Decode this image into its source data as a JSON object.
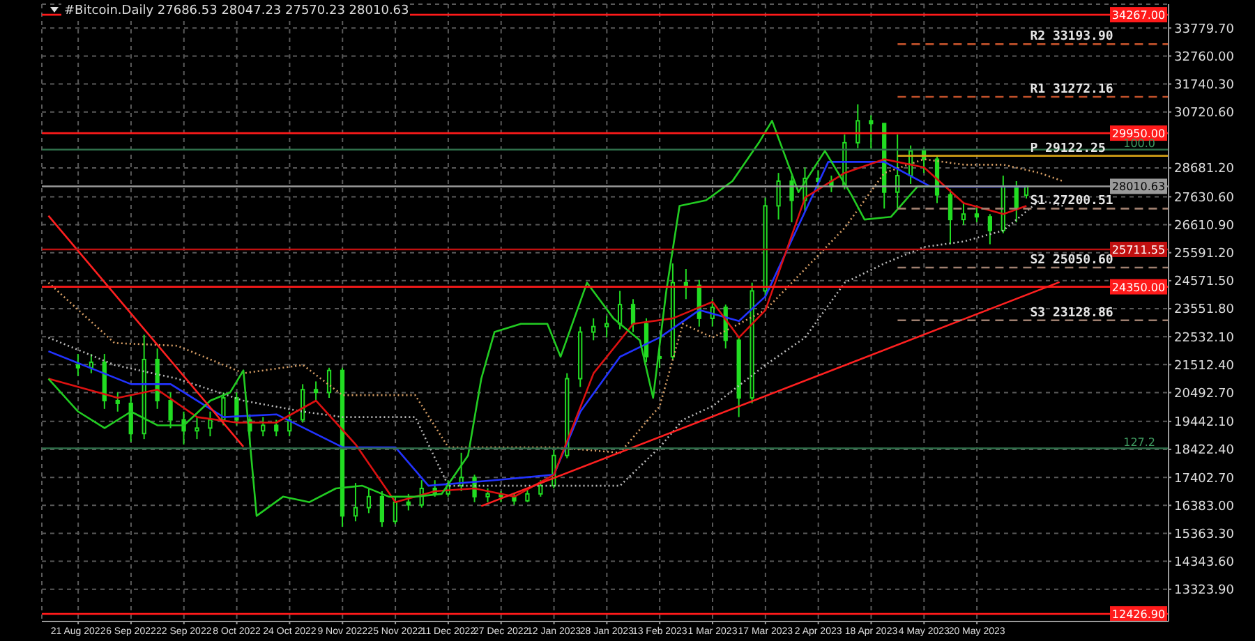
{
  "chart_data": {
    "type": "candlestick",
    "title": "#Bitcoin.Daily  27686.53 28047.23 27570.23 28010.63",
    "xlim": [
      "2022-08-10",
      "2023-07-17"
    ],
    "xticks": [
      {
        "value": "2022-08-21",
        "label": "21 Aug 2022"
      },
      {
        "value": "2022-09-06",
        "label": "6 Sep 2022"
      },
      {
        "value": "2022-09-22",
        "label": "22 Sep 2022"
      },
      {
        "value": "2022-10-08",
        "label": "8 Oct 2022"
      },
      {
        "value": "2022-10-24",
        "label": "24 Oct 2022"
      },
      {
        "value": "2022-11-09",
        "label": "9 Nov 2022"
      },
      {
        "value": "2022-11-25",
        "label": "25 Nov 2022"
      },
      {
        "value": "2022-12-11",
        "label": "11 Dec 2022"
      },
      {
        "value": "2022-12-27",
        "label": "27 Dec 2022"
      },
      {
        "value": "2023-01-12",
        "label": "12 Jan 2023"
      },
      {
        "value": "2023-01-28",
        "label": "28 Jan 2023"
      },
      {
        "value": "2023-02-13",
        "label": "13 Feb 2023"
      },
      {
        "value": "2023-03-01",
        "label": "1 Mar 2023"
      },
      {
        "value": "2023-03-17",
        "label": "17 Mar 2023"
      },
      {
        "value": "2023-04-02",
        "label": "2 Apr 2023"
      },
      {
        "value": "2023-04-18",
        "label": "18 Apr 2023"
      },
      {
        "value": "2023-05-04",
        "label": "4 May 2023"
      },
      {
        "value": "2023-05-20",
        "label": "20 May 2023"
      }
    ],
    "ylim": [
      12150,
      34650
    ],
    "yticks": [
      {
        "value": 13323.9,
        "label": "13323.90"
      },
      {
        "value": 14343.6,
        "label": "14343.60"
      },
      {
        "value": 15363.3,
        "label": "15363.30"
      },
      {
        "value": 16383,
        "label": "16383.00"
      },
      {
        "value": 17402.7,
        "label": "17402.70"
      },
      {
        "value": 18422.4,
        "label": "18422.40"
      },
      {
        "value": 19442.1,
        "label": "19442.10"
      },
      {
        "value": 20492.7,
        "label": "20492.70"
      },
      {
        "value": 21512.4,
        "label": "21512.40"
      },
      {
        "value": 22532.1,
        "label": "22532.10"
      },
      {
        "value": 23551.8,
        "label": "23551.80"
      },
      {
        "value": 24571.5,
        "label": "24571.50"
      },
      {
        "value": 25591.2,
        "label": "25591.20"
      },
      {
        "value": 26610.9,
        "label": "26610.90"
      },
      {
        "value": 27630.6,
        "label": "27630.60"
      },
      {
        "value": 28681.2,
        "label": "28681.20"
      },
      {
        "value": 30720.6,
        "label": "30720.60"
      },
      {
        "value": 31740.3,
        "label": "31740.30"
      },
      {
        "value": 32760,
        "label": "32760.00"
      },
      {
        "value": 33779.7,
        "label": "33779.70"
      }
    ],
    "grid": true,
    "annotations": [
      {
        "text": "100.0",
        "x": "2023-07-13",
        "y": 29350
      },
      {
        "text": "127.2",
        "x": "2023-07-13",
        "y": 18460
      }
    ],
    "ref_lines": [
      {
        "axis": "y",
        "value": 34267,
        "label": "34267.00",
        "color": "#ff1a1a"
      },
      {
        "axis": "y",
        "value": 29950,
        "label": "29950.00",
        "color": "#ff1a1a"
      },
      {
        "axis": "y",
        "value": 29350,
        "color": "#2f6f4a"
      },
      {
        "axis": "y",
        "value": 28010.63,
        "label": "28010.63",
        "color": "#9a9a9a"
      },
      {
        "axis": "y",
        "value": 25711.55,
        "label": "25711.55",
        "color": "#c01010"
      },
      {
        "axis": "y",
        "value": 24350,
        "label": "24350.00",
        "color": "#ff1a1a"
      },
      {
        "axis": "y",
        "value": 18460,
        "color": "#2f6f4a"
      },
      {
        "axis": "y",
        "value": 12426.9,
        "label": "12426.90",
        "color": "#ff1a1a"
      }
    ],
    "series": [
      {
        "type": "candlestick",
        "color": "#22dd22",
        "x": [
          "2022-08-21",
          "2022-08-25",
          "2022-08-29",
          "2022-09-02",
          "2022-09-06",
          "2022-09-10",
          "2022-09-14",
          "2022-09-18",
          "2022-09-22",
          "2022-09-26",
          "2022-09-30",
          "2022-10-04",
          "2022-10-08",
          "2022-10-12",
          "2022-10-16",
          "2022-10-20",
          "2022-10-24",
          "2022-10-28",
          "2022-11-01",
          "2022-11-05",
          "2022-11-09",
          "2022-11-13",
          "2022-11-17",
          "2022-11-21",
          "2022-11-25",
          "2022-11-29",
          "2022-12-03",
          "2022-12-07",
          "2022-12-11",
          "2022-12-15",
          "2022-12-19",
          "2022-12-23",
          "2022-12-27",
          "2022-12-31",
          "2023-01-04",
          "2023-01-08",
          "2023-01-12",
          "2023-01-16",
          "2023-01-20",
          "2023-01-24",
          "2023-01-28",
          "2023-02-01",
          "2023-02-05",
          "2023-02-09",
          "2023-02-13",
          "2023-02-17",
          "2023-02-21",
          "2023-02-25",
          "2023-03-01",
          "2023-03-05",
          "2023-03-09",
          "2023-03-13",
          "2023-03-17",
          "2023-03-21",
          "2023-03-25",
          "2023-03-29",
          "2023-04-02",
          "2023-04-06",
          "2023-04-10",
          "2023-04-14",
          "2023-04-18",
          "2023-04-22",
          "2023-04-26",
          "2023-04-30",
          "2023-05-04",
          "2023-05-08",
          "2023-05-12",
          "2023-05-16",
          "2023-05-20",
          "2023-05-24",
          "2023-05-28",
          "2023-06-01",
          "2023-06-04"
        ],
        "ohlc": [
          [
            21500,
            21900,
            21100,
            21400
          ],
          [
            21400,
            21900,
            21200,
            21600
          ],
          [
            21600,
            21900,
            19900,
            20200
          ],
          [
            20200,
            20500,
            19800,
            20100
          ],
          [
            20100,
            20400,
            18700,
            19000
          ],
          [
            19000,
            22600,
            18800,
            21700
          ],
          [
            21700,
            22100,
            19900,
            20200
          ],
          [
            20200,
            20500,
            19200,
            19500
          ],
          [
            19500,
            19800,
            18600,
            19100
          ],
          [
            19100,
            19600,
            18800,
            19200
          ],
          [
            19200,
            19800,
            18900,
            19500
          ],
          [
            19500,
            20500,
            19300,
            20300
          ],
          [
            20300,
            20500,
            19300,
            19500
          ],
          [
            19500,
            19700,
            18600,
            19100
          ],
          [
            19100,
            19600,
            18900,
            19300
          ],
          [
            19300,
            19500,
            18900,
            19100
          ],
          [
            19100,
            19800,
            18900,
            19500
          ],
          [
            19500,
            20800,
            19400,
            20600
          ],
          [
            20600,
            20900,
            20200,
            20500
          ],
          [
            20500,
            21400,
            20300,
            21300
          ],
          [
            21300,
            21400,
            15600,
            16000
          ],
          [
            16000,
            17200,
            15800,
            16300
          ],
          [
            16300,
            17000,
            16100,
            16700
          ],
          [
            16700,
            16900,
            15600,
            15800
          ],
          [
            15800,
            16700,
            15700,
            16500
          ],
          [
            16500,
            16800,
            16200,
            16400
          ],
          [
            16400,
            17300,
            16300,
            17000
          ],
          [
            17000,
            17300,
            16700,
            16800
          ],
          [
            16800,
            17300,
            16700,
            17100
          ],
          [
            17100,
            18300,
            16900,
            17400
          ],
          [
            17400,
            17500,
            16500,
            16700
          ],
          [
            16700,
            17000,
            16500,
            16800
          ],
          [
            16800,
            16900,
            16500,
            16700
          ],
          [
            16700,
            16800,
            16400,
            16550
          ],
          [
            16550,
            17000,
            16500,
            16800
          ],
          [
            16800,
            17300,
            16700,
            17100
          ],
          [
            17100,
            18400,
            17000,
            18200
          ],
          [
            18200,
            21200,
            18100,
            21000
          ],
          [
            21000,
            22900,
            20700,
            22700
          ],
          [
            22700,
            23200,
            22400,
            22900
          ],
          [
            22900,
            23300,
            22500,
            23000
          ],
          [
            23000,
            24200,
            22800,
            23700
          ],
          [
            23700,
            23900,
            22700,
            23000
          ],
          [
            23000,
            23200,
            21600,
            21800
          ],
          [
            21800,
            22100,
            21400,
            21800
          ],
          [
            21800,
            25200,
            21700,
            24500
          ],
          [
            24500,
            25000,
            23900,
            24400
          ],
          [
            24400,
            24600,
            22900,
            23200
          ],
          [
            23200,
            23900,
            22900,
            23600
          ],
          [
            23600,
            23700,
            22100,
            22400
          ],
          [
            22400,
            22500,
            19600,
            20300
          ],
          [
            20300,
            24500,
            20100,
            24200
          ],
          [
            24200,
            27600,
            24000,
            27300
          ],
          [
            27300,
            28500,
            26800,
            28200
          ],
          [
            28200,
            28400,
            26700,
            27500
          ],
          [
            27500,
            28700,
            27100,
            28300
          ],
          [
            28300,
            28600,
            27900,
            28200
          ],
          [
            28200,
            28400,
            27800,
            28000
          ],
          [
            28000,
            29900,
            27900,
            29600
          ],
          [
            29600,
            31000,
            29400,
            30400
          ],
          [
            30400,
            30600,
            29400,
            30300
          ],
          [
            30300,
            30300,
            27200,
            27800
          ],
          [
            27800,
            29900,
            27200,
            28400
          ],
          [
            28400,
            29500,
            28100,
            29300
          ],
          [
            29300,
            29400,
            28500,
            29000
          ],
          [
            29000,
            29100,
            27400,
            27700
          ],
          [
            27700,
            27900,
            25900,
            26800
          ],
          [
            26800,
            27400,
            26600,
            27000
          ],
          [
            27000,
            27300,
            26700,
            26900
          ],
          [
            26900,
            27000,
            25900,
            26400
          ],
          [
            26400,
            28400,
            26300,
            28000
          ],
          [
            28000,
            28200,
            26700,
            27200
          ],
          [
            27686.53,
            28047.23,
            27570.23,
            28010.63
          ]
        ]
      },
      {
        "type": "line",
        "color": "#d9a066",
        "line_style": "dotted",
        "x": [
          "2022-08-12",
          "2022-09-01",
          "2022-09-20",
          "2022-10-10",
          "2022-10-28",
          "2022-11-09",
          "2022-12-01",
          "2022-12-11",
          "2023-01-12",
          "2023-02-01",
          "2023-02-13",
          "2023-02-20",
          "2023-03-01",
          "2023-03-17",
          "2023-03-29",
          "2023-04-10",
          "2023-04-22",
          "2023-05-04",
          "2023-05-16",
          "2023-05-28",
          "2023-06-08",
          "2023-06-15"
        ],
        "values": [
          24500,
          22300,
          22200,
          21200,
          21500,
          20400,
          20400,
          18500,
          18500,
          18300,
          20000,
          23000,
          22500,
          23500,
          25000,
          26500,
          28500,
          29000,
          28800,
          28800,
          28500,
          28200
        ]
      },
      {
        "type": "line",
        "color": "#bbbbbb",
        "line_style": "dotted",
        "x": [
          "2022-08-12",
          "2022-09-01",
          "2022-09-20",
          "2022-10-10",
          "2022-10-28",
          "2022-11-09",
          "2022-12-01",
          "2022-12-11",
          "2023-01-12",
          "2023-02-01",
          "2023-02-13",
          "2023-02-20",
          "2023-03-01",
          "2023-03-17",
          "2023-03-29",
          "2023-04-10",
          "2023-04-22",
          "2023-05-04",
          "2023-05-16",
          "2023-05-28",
          "2023-06-08",
          "2023-06-15"
        ],
        "values": [
          22500,
          21500,
          21000,
          20200,
          19800,
          19600,
          19600,
          17100,
          17100,
          17100,
          18500,
          19500,
          20000,
          21500,
          22500,
          24500,
          25200,
          25800,
          26000,
          26400,
          27500,
          27300
        ]
      },
      {
        "type": "line",
        "color": "#2233ff",
        "x": [
          "2022-08-12",
          "2022-09-06",
          "2022-09-18",
          "2022-10-04",
          "2022-10-20",
          "2022-11-09",
          "2022-11-25",
          "2022-12-05",
          "2022-12-25",
          "2023-01-12",
          "2023-01-20",
          "2023-02-01",
          "2023-02-13",
          "2023-02-25",
          "2023-03-09",
          "2023-03-17",
          "2023-04-05",
          "2023-04-22",
          "2023-05-06",
          "2023-06-04"
        ],
        "values": [
          22000,
          20800,
          20800,
          19600,
          19700,
          18500,
          18500,
          17100,
          17300,
          17500,
          19800,
          21800,
          22500,
          23500,
          23100,
          24000,
          28900,
          28900,
          28000,
          28000
        ]
      },
      {
        "type": "line",
        "color": "#dd1111",
        "x": [
          "2022-08-12",
          "2022-09-02",
          "2022-09-14",
          "2022-09-26",
          "2022-10-08",
          "2022-10-20",
          "2022-11-01",
          "2022-11-13",
          "2022-11-25",
          "2022-12-07",
          "2022-12-19",
          "2022-12-31",
          "2023-01-12",
          "2023-01-24",
          "2023-02-05",
          "2023-02-17",
          "2023-03-01",
          "2023-03-09",
          "2023-03-17",
          "2023-03-29",
          "2023-04-10",
          "2023-04-22",
          "2023-05-04",
          "2023-05-16",
          "2023-05-28",
          "2023-06-04"
        ],
        "values": [
          21000,
          20300,
          20600,
          19600,
          19400,
          19400,
          20200,
          18600,
          16500,
          16900,
          17000,
          16700,
          17500,
          21200,
          23000,
          23200,
          23800,
          22500,
          23500,
          27600,
          28500,
          29000,
          28700,
          27400,
          27000,
          27300
        ]
      },
      {
        "type": "line",
        "color": "#22cc22",
        "x": [
          "2022-08-12",
          "2022-08-21",
          "2022-08-29",
          "2022-09-06",
          "2022-09-14",
          "2022-09-22",
          "2022-09-30",
          "2022-10-06",
          "2022-10-10",
          "2022-10-14",
          "2022-10-22",
          "2022-10-30",
          "2022-11-07",
          "2022-11-15",
          "2022-11-23",
          "2022-12-01",
          "2022-12-09",
          "2022-12-17",
          "2022-12-21",
          "2022-12-25",
          "2023-01-02",
          "2023-01-10",
          "2023-01-14",
          "2023-01-22",
          "2023-01-30",
          "2023-02-07",
          "2023-02-11",
          "2023-02-15",
          "2023-02-19",
          "2023-02-27",
          "2023-03-07",
          "2023-03-15",
          "2023-03-19",
          "2023-03-27",
          "2023-04-04",
          "2023-04-12",
          "2023-04-16",
          "2023-04-24",
          "2023-05-02",
          "2023-05-09"
        ],
        "values": [
          21000,
          19800,
          19200,
          19800,
          19300,
          19300,
          20200,
          20500,
          21300,
          16000,
          16700,
          16500,
          17000,
          17100,
          16700,
          16700,
          16800,
          18200,
          21000,
          22700,
          23000,
          23000,
          21800,
          24500,
          23200,
          22400,
          20300,
          24200,
          27300,
          27500,
          28200,
          29600,
          30400,
          27800,
          29300,
          27700,
          26800,
          26900,
          28000,
          28010.63
        ]
      },
      {
        "type": "line",
        "color": "#ff2020",
        "x": [
          "2022-08-12",
          "2022-10-10"
        ],
        "values": [
          26940,
          18520
        ]
      },
      {
        "type": "line",
        "color": "#ff2020",
        "x": [
          "2022-12-21",
          "2023-06-14"
        ],
        "values": [
          16356,
          24520
        ]
      },
      {
        "type": "line",
        "name": "R2 33193.90",
        "color": "#c0502a",
        "line_style": "dashed",
        "x": [
          "2023-04-26",
          "2023-07-17"
        ],
        "values": [
          33193.9,
          33193.9
        ]
      },
      {
        "type": "line",
        "name": "R1 31272.16",
        "color": "#c0502a",
        "line_style": "dashed",
        "x": [
          "2023-04-26",
          "2023-07-17"
        ],
        "values": [
          31272.16,
          31272.16
        ]
      },
      {
        "type": "line",
        "name": "P 29122.25",
        "color": "#d4a017",
        "x": [
          "2023-04-26",
          "2023-07-17"
        ],
        "values": [
          29122.25,
          29122.25
        ]
      },
      {
        "type": "line",
        "name": "S1 27200.51",
        "color": "#a08070",
        "line_style": "dashed",
        "x": [
          "2023-04-26",
          "2023-07-17"
        ],
        "values": [
          27200.51,
          27200.51
        ]
      },
      {
        "type": "line",
        "name": "S2 25050.60",
        "color": "#a08070",
        "line_style": "dashed",
        "x": [
          "2023-04-26",
          "2023-07-17"
        ],
        "values": [
          25050.6,
          25050.6
        ]
      },
      {
        "type": "line",
        "name": "S3 23128.86",
        "color": "#a08070",
        "line_style": "dashed",
        "x": [
          "2023-04-26",
          "2023-07-17"
        ],
        "values": [
          23128.86,
          23128.86
        ]
      }
    ]
  }
}
